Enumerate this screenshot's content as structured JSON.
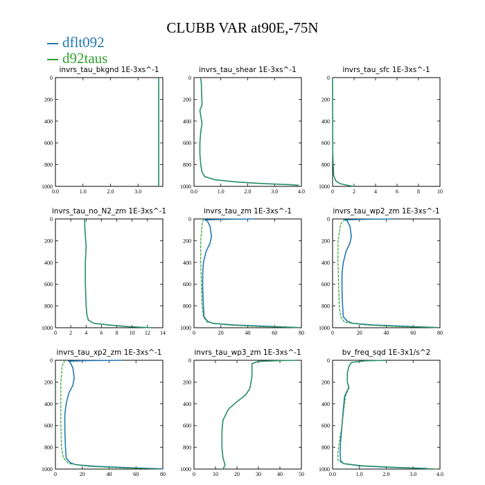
{
  "title": "CLUBB VAR at90E,-75N",
  "legend": [
    {
      "label": "dflt092",
      "color": "#1f77b4"
    },
    {
      "label": "d92taus",
      "color": "#2ca02c"
    }
  ],
  "chart_data": [
    {
      "type": "line",
      "title": "invrs_tau_bkgnd   1E-3xs^-1",
      "xlim": [
        0,
        3.9
      ],
      "ylim": [
        0,
        1000
      ],
      "y_inverted": true,
      "xticks": [
        0,
        1,
        2,
        3
      ],
      "xticklabels": [
        "0.0",
        "1.0",
        "2.0",
        "3.0"
      ],
      "yticks": [
        0,
        200,
        400,
        600,
        800,
        1000
      ],
      "series": [
        {
          "name": "dflt092",
          "x": [
            3.75,
            3.75,
            3.75
          ],
          "y": [
            0,
            500,
            1000
          ]
        },
        {
          "name": "d92taus",
          "x": [
            3.75,
            3.75,
            3.75
          ],
          "y": [
            0,
            500,
            1000
          ]
        }
      ]
    },
    {
      "type": "line",
      "title": "invrs_tau_shear   1E-3xs^-1",
      "xlim": [
        0,
        4.0
      ],
      "ylim": [
        0,
        1000
      ],
      "y_inverted": true,
      "xticks": [
        0,
        1,
        2,
        3,
        4
      ],
      "xticklabels": [
        "0.0",
        "1.0",
        "2.0",
        "3.0",
        "4.0"
      ],
      "yticks": [
        0,
        200,
        400,
        600,
        800,
        1000
      ],
      "series": [
        {
          "name": "dflt092",
          "x": [
            0.25,
            0.27,
            0.3,
            0.22,
            0.25,
            0.3,
            0.25,
            0.22,
            0.22,
            0.25,
            0.3,
            0.4,
            0.8,
            1.6,
            2.6,
            3.6,
            3.9
          ],
          "y": [
            0,
            50,
            250,
            300,
            350,
            420,
            500,
            600,
            700,
            800,
            870,
            910,
            940,
            960,
            975,
            985,
            990
          ]
        },
        {
          "name": "d92taus",
          "x": [
            0.25,
            0.27,
            0.3,
            0.22,
            0.25,
            0.3,
            0.25,
            0.22,
            0.22,
            0.25,
            0.3,
            0.4,
            0.8,
            1.6,
            2.6,
            3.6,
            3.9
          ],
          "y": [
            0,
            50,
            250,
            300,
            350,
            420,
            500,
            600,
            700,
            800,
            870,
            910,
            940,
            960,
            975,
            985,
            990
          ]
        }
      ]
    },
    {
      "type": "line",
      "title": "invrs_tau_sfc   1E-3xs^-1",
      "xlim": [
        0,
        10
      ],
      "ylim": [
        0,
        1000
      ],
      "y_inverted": true,
      "xticks": [
        0,
        2,
        4,
        6,
        8,
        10
      ],
      "xticklabels": [
        "0",
        "2",
        "4",
        "6",
        "8",
        "10"
      ],
      "yticks": [
        0,
        200,
        400,
        600,
        800,
        1000
      ],
      "series": [
        {
          "name": "dflt092",
          "x": [
            0.0,
            0.02,
            0.1,
            0.3,
            0.7,
            1.4,
            2.0
          ],
          "y": [
            0,
            700,
            900,
            950,
            975,
            990,
            1000
          ]
        },
        {
          "name": "d92taus",
          "x": [
            0.0,
            0.02,
            0.1,
            0.3,
            0.7,
            1.4,
            2.0
          ],
          "y": [
            0,
            700,
            900,
            950,
            975,
            990,
            1000
          ]
        }
      ]
    },
    {
      "type": "line",
      "title": "invrs_tau_no_N2_zm   1E-3xs^-1",
      "xlim": [
        0,
        14
      ],
      "ylim": [
        0,
        1000
      ],
      "y_inverted": true,
      "xticks": [
        0,
        2,
        4,
        6,
        8,
        10,
        12,
        14
      ],
      "xticklabels": [
        "0",
        "2",
        "4",
        "6",
        "8",
        "10",
        "12",
        "14"
      ],
      "yticks": [
        0,
        200,
        400,
        600,
        800,
        1000
      ],
      "series": [
        {
          "name": "dflt092",
          "x": [
            3.8,
            3.85,
            4.0,
            3.9,
            3.9,
            4.0,
            4.1,
            4.3,
            5.0,
            7.0,
            9.5,
            12.5
          ],
          "y": [
            0,
            100,
            250,
            400,
            600,
            800,
            880,
            930,
            960,
            975,
            990,
            1000
          ]
        },
        {
          "name": "d92taus",
          "x": [
            3.8,
            3.85,
            4.0,
            3.9,
            3.9,
            4.0,
            4.1,
            4.3,
            5.0,
            7.0,
            9.5,
            12.5
          ],
          "y": [
            0,
            100,
            250,
            400,
            600,
            800,
            880,
            930,
            960,
            975,
            990,
            1000
          ]
        }
      ]
    },
    {
      "type": "line",
      "title": "invrs_tau_zm   1E-3xs^-1",
      "xlim": [
        0,
        80
      ],
      "ylim": [
        0,
        1000
      ],
      "y_inverted": true,
      "xticks": [
        0,
        20,
        40,
        60,
        80
      ],
      "xticklabels": [
        "0",
        "20",
        "40",
        "60",
        "80"
      ],
      "yticks": [
        0,
        200,
        400,
        600,
        800,
        1000
      ],
      "series": [
        {
          "name": "dflt092",
          "x": [
            45,
            25,
            8,
            10,
            12,
            13,
            12,
            9,
            7,
            6.5,
            6.5,
            7,
            7.5,
            10,
            14,
            30,
            60,
            78
          ],
          "y": [
            0,
            3,
            8,
            20,
            70,
            160,
            220,
            300,
            400,
            500,
            650,
            800,
            900,
            940,
            960,
            975,
            990,
            998
          ]
        },
        {
          "name": "d92taus",
          "x": [
            7,
            6,
            5,
            5,
            5.5,
            6,
            7,
            10,
            25,
            50,
            78
          ],
          "y": [
            0,
            50,
            200,
            400,
            600,
            800,
            900,
            950,
            975,
            990,
            998
          ]
        }
      ]
    },
    {
      "type": "line",
      "title": "invrs_tau_wp2_zm   1E-3xs^-1",
      "xlim": [
        0,
        80
      ],
      "ylim": [
        0,
        1000
      ],
      "y_inverted": true,
      "xticks": [
        0,
        20,
        40,
        60,
        80
      ],
      "xticklabels": [
        "0",
        "20",
        "40",
        "60",
        "80"
      ],
      "yticks": [
        0,
        200,
        400,
        600,
        800,
        1000
      ],
      "series": [
        {
          "name": "dflt092",
          "x": [
            45,
            25,
            9,
            11,
            13,
            14,
            13,
            10,
            8,
            7,
            7,
            7.5,
            8,
            11,
            15,
            30,
            60,
            78
          ],
          "y": [
            0,
            3,
            8,
            20,
            70,
            160,
            220,
            300,
            400,
            500,
            650,
            800,
            900,
            940,
            960,
            975,
            990,
            998
          ]
        },
        {
          "name": "d92taus",
          "x": [
            9,
            6,
            4,
            4,
            4.5,
            5,
            6,
            9,
            25,
            50,
            78
          ],
          "y": [
            0,
            50,
            200,
            400,
            600,
            800,
            900,
            950,
            975,
            990,
            998
          ]
        }
      ]
    },
    {
      "type": "line",
      "title": "invrs_tau_xp2_zm   1E-3xs^-1",
      "xlim": [
        0,
        80
      ],
      "ylim": [
        0,
        1000
      ],
      "y_inverted": true,
      "xticks": [
        0,
        20,
        40,
        60,
        80
      ],
      "xticklabels": [
        "0",
        "20",
        "40",
        "60",
        "80"
      ],
      "yticks": [
        0,
        200,
        400,
        600,
        800,
        1000
      ],
      "series": [
        {
          "name": "dflt092",
          "x": [
            50,
            25,
            10,
            11,
            13,
            14,
            13,
            10,
            8,
            7,
            7,
            7.5,
            8,
            11,
            15,
            30,
            60,
            80
          ],
          "y": [
            0,
            3,
            8,
            20,
            70,
            160,
            230,
            300,
            400,
            500,
            650,
            800,
            900,
            940,
            960,
            975,
            990,
            998
          ]
        },
        {
          "name": "d92taus",
          "x": [
            7,
            5,
            4,
            4,
            4,
            4.5,
            6,
            10,
            25,
            50,
            78
          ],
          "y": [
            0,
            50,
            200,
            400,
            600,
            800,
            900,
            950,
            975,
            990,
            998
          ]
        }
      ]
    },
    {
      "type": "line",
      "title": "invrs_tau_wp3_zm   1E-3xs^-1",
      "xlim": [
        0,
        50
      ],
      "ylim": [
        0,
        1000
      ],
      "y_inverted": true,
      "xticks": [
        0,
        10,
        20,
        30,
        40,
        50
      ],
      "xticklabels": [
        "0",
        "10",
        "20",
        "30",
        "40",
        "50"
      ],
      "yticks": [
        0,
        200,
        400,
        600,
        800,
        1000
      ],
      "series": [
        {
          "name": "dflt092",
          "x": [
            48,
            40,
            30,
            27,
            27,
            26,
            24,
            20,
            16,
            13.5,
            13,
            13,
            13.5,
            14,
            14.5,
            13.5
          ],
          "y": [
            0,
            3,
            10,
            30,
            150,
            260,
            320,
            380,
            450,
            550,
            650,
            800,
            900,
            930,
            960,
            1000
          ]
        },
        {
          "name": "d92taus",
          "x": [
            48,
            40,
            30,
            27,
            27,
            26,
            24,
            20,
            16,
            13.5,
            13,
            13,
            13.5,
            14,
            14.5,
            13.5
          ],
          "y": [
            0,
            3,
            10,
            30,
            150,
            260,
            320,
            380,
            450,
            550,
            650,
            800,
            900,
            930,
            960,
            1000
          ]
        }
      ]
    },
    {
      "type": "line",
      "title": "bv_freq_sqd   1E-3x1/s^2",
      "xlim": [
        0,
        4.0
      ],
      "ylim": [
        0,
        1000
      ],
      "y_inverted": true,
      "xticks": [
        0,
        1,
        2,
        3,
        4
      ],
      "xticklabels": [
        "0.0",
        "1.0",
        "2.0",
        "3.0",
        "4.0"
      ],
      "yticks": [
        0,
        200,
        400,
        600,
        800,
        1000
      ],
      "series": [
        {
          "name": "dflt092",
          "x": [
            2.0,
            1.2,
            0.7,
            0.6,
            0.55,
            0.55,
            0.6,
            0.45,
            0.4,
            0.35,
            0.3,
            0.28,
            0.3,
            0.4,
            1.0,
            2.2,
            3.5,
            3.6
          ],
          "y": [
            0,
            5,
            20,
            60,
            120,
            200,
            250,
            330,
            450,
            600,
            750,
            850,
            920,
            950,
            970,
            985,
            995,
            1000
          ]
        },
        {
          "name": "d92taus",
          "x": [
            2.0,
            1.2,
            0.7,
            0.6,
            0.55,
            0.55,
            0.62,
            0.48,
            0.42,
            0.35,
            0.25,
            0.2,
            0.2,
            0.4,
            1.2,
            2.5,
            3.6,
            3.9
          ],
          "y": [
            0,
            5,
            20,
            60,
            120,
            200,
            250,
            330,
            450,
            600,
            750,
            850,
            920,
            950,
            970,
            985,
            995,
            1000
          ]
        }
      ]
    }
  ]
}
